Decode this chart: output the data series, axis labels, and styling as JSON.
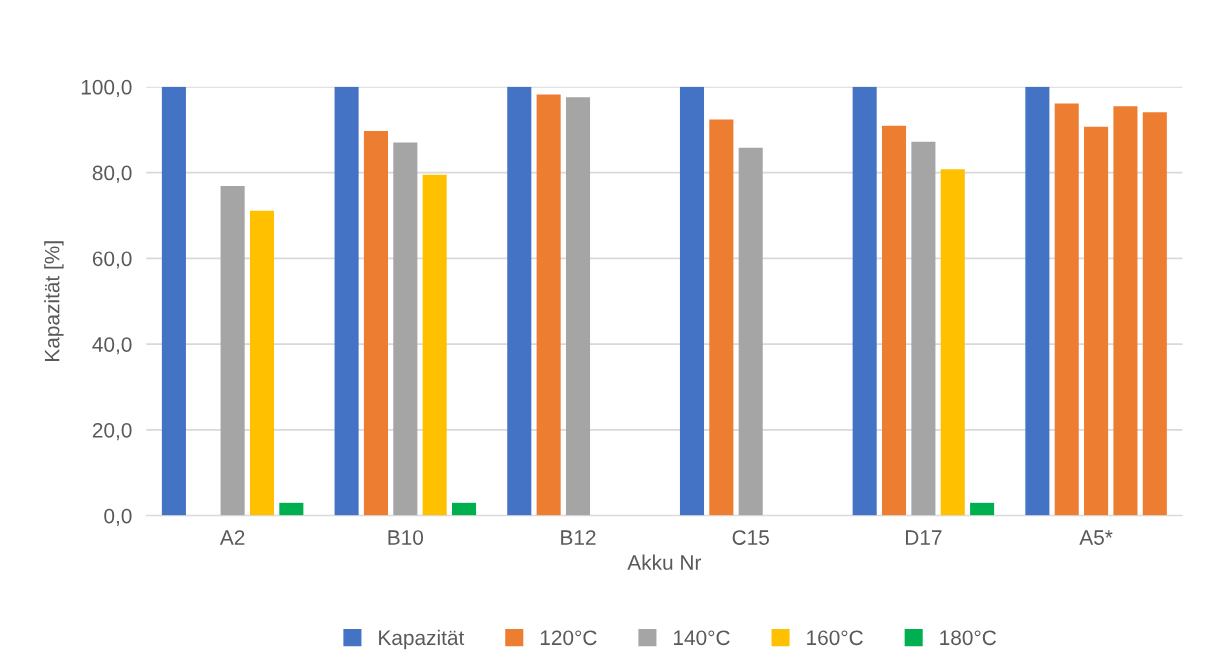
{
  "chart_data": {
    "type": "bar",
    "xlabel": "Akku Nr",
    "ylabel": "Kapazität [%]",
    "categories": [
      "A2",
      "B10",
      "B12",
      "C15",
      "D17",
      "A5*"
    ],
    "series": [
      {
        "name": "Kapazität",
        "color": "#4472c4",
        "values": [
          100,
          100,
          100,
          100,
          100,
          100
        ]
      },
      {
        "name": "120°C",
        "color": "#ed7d31",
        "values": [
          null,
          89.7,
          98.2,
          92.4,
          90.9,
          96.1
        ]
      },
      {
        "name": "140°C",
        "color": "#a5a5a5",
        "colors": [
          "#a5a5a5",
          "#a5a5a5",
          "#a5a5a5",
          "#a5a5a5",
          "#a5a5a5",
          "#ed7d31"
        ],
        "values": [
          76.9,
          87.0,
          97.6,
          85.8,
          87.2,
          90.7
        ]
      },
      {
        "name": "160°C",
        "color": "#ffc000",
        "colors": [
          "#ffc000",
          "#ffc000",
          "#ffc000",
          "#ffc000",
          "#ffc000",
          "#ed7d31"
        ],
        "values": [
          71.1,
          79.5,
          null,
          null,
          80.8,
          95.5
        ]
      },
      {
        "name": "180°C",
        "color": "#00b050",
        "colors": [
          "#00b050",
          "#00b050",
          "#00b050",
          "#00b050",
          "#00b050",
          "#ed7d31"
        ],
        "values": [
          3.0,
          3.0,
          null,
          null,
          3.0,
          94.1
        ]
      }
    ],
    "ylim": [
      0,
      100
    ],
    "yticks": [
      {
        "value": 0,
        "label": "0,0"
      },
      {
        "value": 20,
        "label": "20,0"
      },
      {
        "value": 40,
        "label": "40,0"
      },
      {
        "value": 60,
        "label": "60,0"
      },
      {
        "value": 80,
        "label": "80,0"
      },
      {
        "value": 100,
        "label": "100,0"
      }
    ],
    "grid": "y",
    "legend": "bottom"
  }
}
